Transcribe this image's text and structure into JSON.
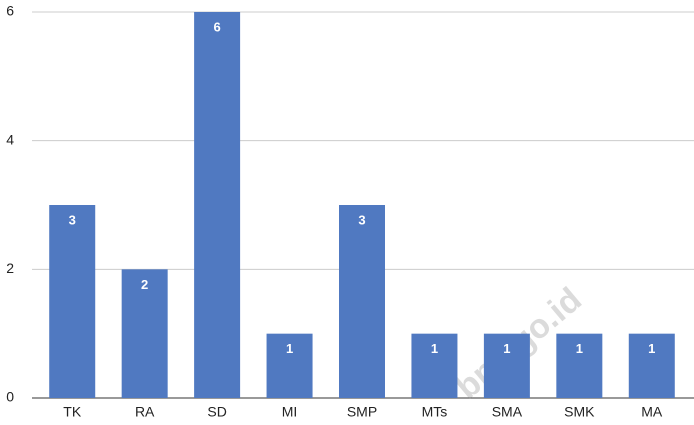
{
  "chart_data": {
    "type": "bar",
    "watermark": "bps.go.id",
    "categories": [
      "TK",
      "RA",
      "SD",
      "MI",
      "SMP",
      "MTs",
      "SMA",
      "SMK",
      "MA"
    ],
    "values": [
      3,
      2,
      6,
      1,
      3,
      1,
      1,
      1,
      1
    ],
    "color": "#5079c1",
    "ylim": [
      0,
      6
    ],
    "yticks": [
      0,
      2,
      4,
      6
    ],
    "grid": true
  }
}
